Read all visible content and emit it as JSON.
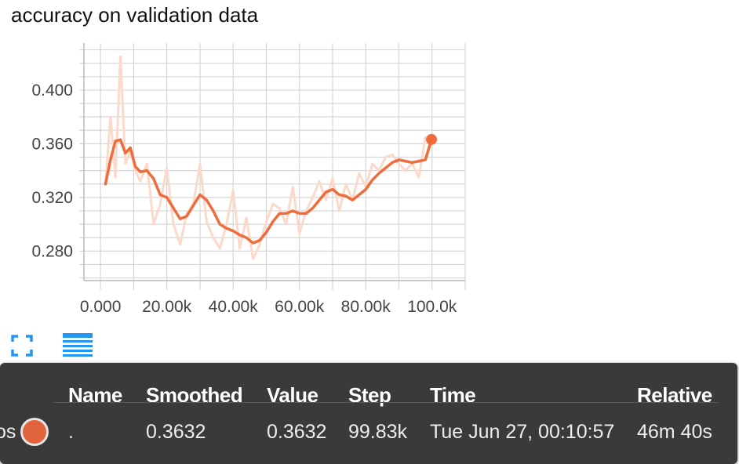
{
  "title": "accuracy on validation data",
  "colors": {
    "line": "#ef6c3c",
    "raw_line": "#fbd9cb",
    "grid": "#d6d6d6",
    "tooltip_bg": "#3a3a3a",
    "icon": "#2196f3"
  },
  "icons": {
    "expand": "fullscreen-corners-icon",
    "data": "data-rows-icon"
  },
  "chart_data": {
    "type": "line",
    "title": "accuracy on validation data",
    "xlabel": "",
    "ylabel": "",
    "xlim": [
      -5000,
      110000
    ],
    "ylim": [
      0.258,
      0.435
    ],
    "x_ticks": [
      0,
      20000,
      40000,
      60000,
      80000,
      100000
    ],
    "x_tick_labels": [
      "0.000",
      "20.00k",
      "40.00k",
      "60.00k",
      "80.00k",
      "100.0k"
    ],
    "y_ticks": [
      0.28,
      0.32,
      0.36,
      0.4
    ],
    "y_tick_labels": [
      "0.280",
      "0.320",
      "0.360",
      "0.400"
    ],
    "grid": true,
    "series": [
      {
        "role": "raw",
        "x": [
          1500,
          3000,
          4500,
          6000,
          7500,
          9000,
          10500,
          12000,
          14000,
          16000,
          18000,
          20000,
          22000,
          24000,
          26000,
          28000,
          30000,
          32000,
          34000,
          36000,
          38000,
          40000,
          42000,
          44000,
          46000,
          48000,
          50000,
          52000,
          54000,
          56000,
          58000,
          60000,
          62000,
          64000,
          66000,
          68000,
          70000,
          72000,
          74000,
          76000,
          78000,
          80000,
          82000,
          84000,
          86000,
          88000,
          90000,
          92000,
          94000,
          96000,
          98000,
          99830
        ],
        "y": [
          0.33,
          0.38,
          0.335,
          0.425,
          0.345,
          0.355,
          0.34,
          0.332,
          0.345,
          0.3,
          0.315,
          0.342,
          0.3,
          0.285,
          0.308,
          0.315,
          0.345,
          0.302,
          0.29,
          0.282,
          0.3,
          0.325,
          0.282,
          0.305,
          0.274,
          0.285,
          0.302,
          0.315,
          0.312,
          0.3,
          0.328,
          0.293,
          0.31,
          0.32,
          0.332,
          0.318,
          0.334,
          0.31,
          0.33,
          0.318,
          0.338,
          0.328,
          0.345,
          0.34,
          0.35,
          0.352,
          0.345,
          0.34,
          0.345,
          0.335,
          0.365,
          0.3632
        ]
      },
      {
        "role": "smoothed",
        "x": [
          1500,
          3000,
          4500,
          6000,
          7500,
          9000,
          10500,
          12000,
          14000,
          16000,
          18000,
          20000,
          22000,
          24000,
          26000,
          28000,
          30000,
          32000,
          34000,
          36000,
          38000,
          40000,
          42000,
          44000,
          46000,
          48000,
          50000,
          52000,
          54000,
          56000,
          58000,
          60000,
          62000,
          64000,
          66000,
          68000,
          70000,
          72000,
          74000,
          76000,
          78000,
          80000,
          82000,
          84000,
          86000,
          88000,
          90000,
          92000,
          94000,
          96000,
          98000,
          99830
        ],
        "y": [
          0.33,
          0.348,
          0.362,
          0.363,
          0.353,
          0.357,
          0.343,
          0.339,
          0.34,
          0.334,
          0.322,
          0.32,
          0.312,
          0.304,
          0.306,
          0.314,
          0.322,
          0.318,
          0.31,
          0.3,
          0.297,
          0.295,
          0.292,
          0.29,
          0.286,
          0.288,
          0.294,
          0.302,
          0.308,
          0.308,
          0.31,
          0.308,
          0.308,
          0.312,
          0.318,
          0.324,
          0.326,
          0.322,
          0.321,
          0.318,
          0.322,
          0.326,
          0.333,
          0.338,
          0.342,
          0.346,
          0.348,
          0.347,
          0.346,
          0.347,
          0.348,
          0.3632
        ]
      }
    ]
  },
  "tooltip": {
    "headers": {
      "name": "Name",
      "smoothed": "Smoothed",
      "value": "Value",
      "step": "Step",
      "time": "Time",
      "relative": "Relative"
    },
    "row": {
      "name_prefix": "os",
      "name": ".",
      "smoothed": "0.3632",
      "value": "0.3632",
      "step": "99.83k",
      "time": "Tue Jun 27, 00:10:57",
      "relative": "46m 40s"
    }
  }
}
